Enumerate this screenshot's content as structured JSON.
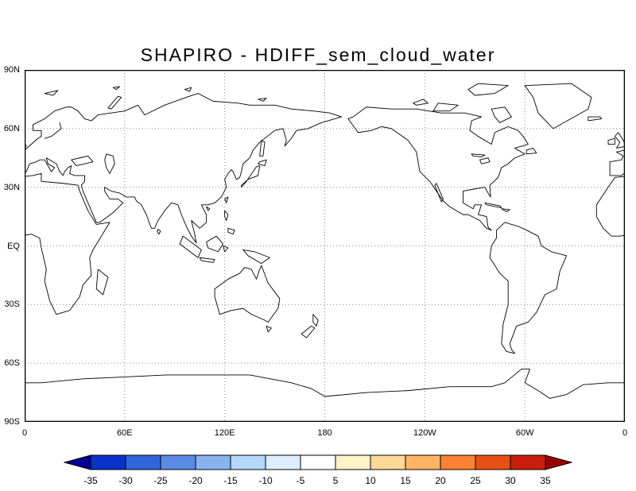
{
  "title": "SHAPIRO - HDIFF_sem_cloud_water",
  "map": {
    "lat_labels": [
      "90N",
      "60N",
      "30N",
      "EQ",
      "30S",
      "60S",
      "90S"
    ],
    "lon_labels": [
      "0",
      "60E",
      "120E",
      "180",
      "120W",
      "60W",
      "0"
    ]
  },
  "colorbar": {
    "labels": [
      "-35",
      "-30",
      "-25",
      "-20",
      "-15",
      "-10",
      "-5",
      "5",
      "10",
      "15",
      "20",
      "25",
      "30",
      "35"
    ],
    "segment_colors": [
      "#0a32c8",
      "#3264dc",
      "#5a8ce6",
      "#87b4f0",
      "#b4d7fa",
      "#dceeff",
      "#ffffff",
      "#fff3c8",
      "#ffd796",
      "#ffb464",
      "#fa8232",
      "#e65014",
      "#c81e0a"
    ],
    "arrow_left_color": "#000096",
    "arrow_right_color": "#960000",
    "outline_color": "#000000"
  },
  "chart_data": {
    "type": "heatmap",
    "title": "SHAPIRO - HDIFF_sem_cloud_water",
    "xlabel": "",
    "ylabel": "",
    "x_ticks": [
      "0",
      "60E",
      "120E",
      "180",
      "120W",
      "60W",
      "0"
    ],
    "y_ticks": [
      "90N",
      "60N",
      "30N",
      "EQ",
      "30S",
      "60S",
      "90S"
    ],
    "xlim_degrees_lon": [
      0,
      360
    ],
    "ylim_degrees_lat": [
      -90,
      90
    ],
    "grid": true,
    "projection": "lat-lon world map with coastlines, Pacific-centered (180 at center)",
    "colorbar_levels": [
      -35,
      -30,
      -25,
      -20,
      -15,
      -10,
      -5,
      5,
      10,
      15,
      20,
      25,
      30,
      35
    ],
    "values_visible": "shaded field is blank/white everywhere (all values fall in the -5..5 white interval); only coastlines and gridlines are visible",
    "legend_position": "horizontal colorbar below map"
  }
}
